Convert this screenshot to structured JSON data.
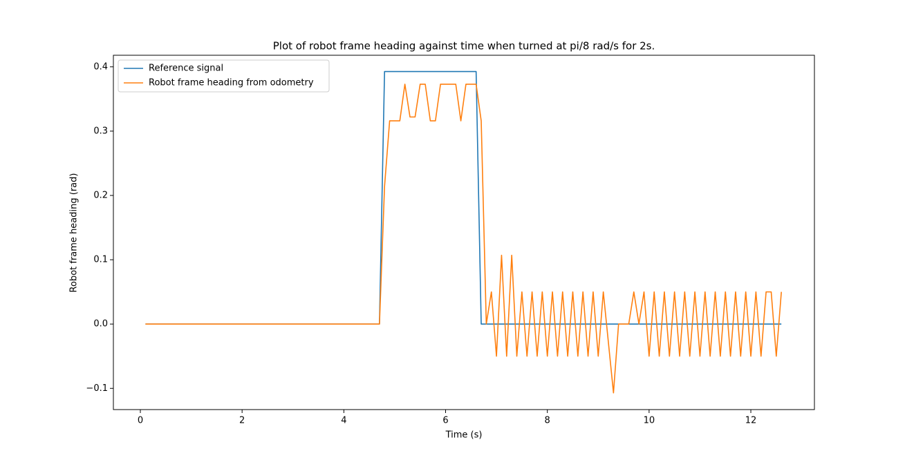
{
  "chart_data": {
    "type": "line",
    "title": "Plot of robot frame heading against time when turned at pi/8 rad/s for 2s.",
    "xlabel": "Time (s)",
    "ylabel": "Robot frame heading (rad)",
    "xlim": [
      -0.53,
      13.25
    ],
    "ylim": [
      -0.133,
      0.418
    ],
    "xticks": [
      0,
      2,
      4,
      6,
      8,
      10,
      12
    ],
    "yticks": [
      {
        "value": -0.1,
        "label": "−0.1"
      },
      {
        "value": 0,
        "label": "0.0"
      },
      0.1,
      0.2,
      0.3,
      0.4
    ],
    "legend": "upper left",
    "series": [
      {
        "name": "Reference signal",
        "color": "#1f77b4",
        "x": [
          0.1,
          4.7,
          4.8,
          6.6,
          6.7,
          12.6
        ],
        "values": [
          0,
          0,
          0.3927,
          0.3927,
          0,
          0
        ]
      },
      {
        "name": "Robot frame heading from odometry",
        "color": "#ff7f0e",
        "x": [
          0.1,
          4.7,
          4.8,
          4.9,
          5.0,
          5.1,
          5.2,
          5.3,
          5.4,
          5.5,
          5.6,
          5.7,
          5.8,
          5.9,
          6.0,
          6.1,
          6.2,
          6.3,
          6.4,
          6.5,
          6.6,
          6.7,
          6.8,
          6.9,
          7.0,
          7.1,
          7.2,
          7.3,
          7.4,
          7.5,
          7.6,
          7.7,
          7.8,
          7.9,
          8.0,
          8.1,
          8.2,
          8.3,
          8.4,
          8.5,
          8.6,
          8.7,
          8.8,
          8.9,
          9.0,
          9.1,
          9.3,
          9.4,
          9.5,
          9.6,
          9.7,
          9.8,
          9.9,
          10.0,
          10.1,
          10.2,
          10.3,
          10.4,
          10.5,
          10.6,
          10.7,
          10.8,
          10.9,
          11.0,
          11.1,
          11.2,
          11.3,
          11.4,
          11.5,
          11.6,
          11.7,
          11.8,
          11.9,
          12.0,
          12.1,
          12.2,
          12.3,
          12.4,
          12.5,
          12.6
        ],
        "values": [
          0,
          0,
          0.214,
          0.316,
          0.316,
          0.316,
          0.373,
          0.322,
          0.322,
          0.373,
          0.373,
          0.316,
          0.316,
          0.373,
          0.373,
          0.373,
          0.373,
          0.316,
          0.373,
          0.373,
          0.373,
          0.316,
          0,
          0.05,
          -0.05,
          0.107,
          -0.05,
          0.107,
          -0.05,
          0.05,
          -0.05,
          0.05,
          -0.05,
          0.05,
          -0.05,
          0.05,
          -0.05,
          0.05,
          -0.05,
          0.05,
          -0.05,
          0.05,
          -0.05,
          0.05,
          -0.05,
          0.05,
          -0.107,
          0,
          0,
          0,
          0.05,
          0,
          0.05,
          -0.05,
          0.05,
          -0.05,
          0.05,
          -0.05,
          0.05,
          -0.05,
          0.05,
          -0.05,
          0.05,
          -0.05,
          0.05,
          -0.05,
          0.05,
          -0.05,
          0.05,
          -0.05,
          0.05,
          -0.05,
          0.05,
          -0.05,
          0.05,
          -0.05,
          0.05,
          0.05,
          -0.05,
          0.05
        ]
      }
    ]
  }
}
